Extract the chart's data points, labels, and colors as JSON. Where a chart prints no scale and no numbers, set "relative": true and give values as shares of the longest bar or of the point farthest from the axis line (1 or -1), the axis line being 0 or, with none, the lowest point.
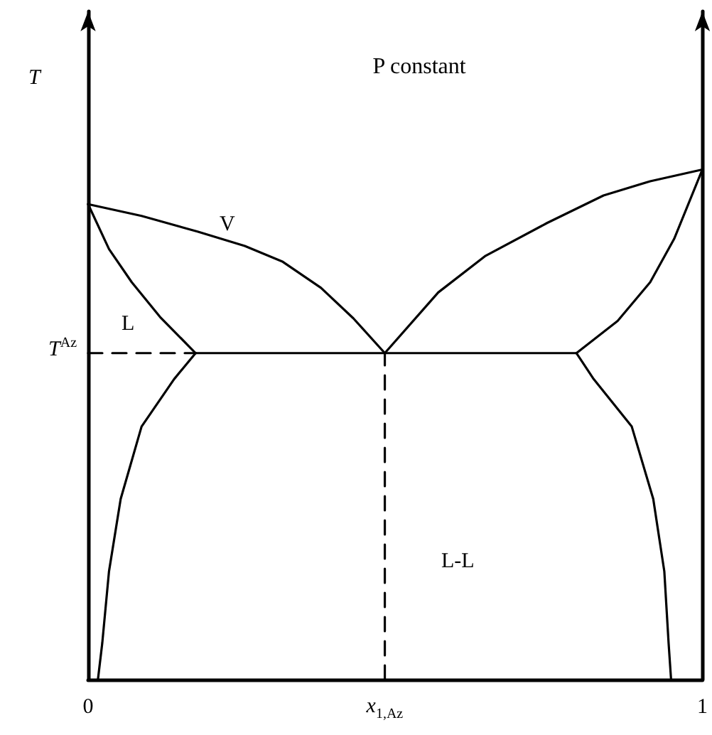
{
  "chart_data": {
    "type": "line",
    "title": "P constant",
    "ylabel": "T",
    "relative": true,
    "xlim": [
      0,
      1
    ],
    "xticks": [
      0,
      1
    ],
    "series": [
      {
        "color": "#000000",
        "x": [
          0,
          0.087,
          0.179,
          0.255,
          0.317,
          0.379,
          0.432,
          0.483
        ],
        "values": [
          0.932,
          0.909,
          0.878,
          0.85,
          0.819,
          0.768,
          0.708,
          0.64
        ]
      },
      {
        "color": "#000000",
        "x": [
          0,
          0.034,
          0.071,
          0.117,
          0.175
        ],
        "values": [
          0.932,
          0.844,
          0.779,
          0.711,
          0.64
        ]
      },
      {
        "color": "#000000",
        "x": [
          0.483,
          0.57,
          0.646,
          0.747,
          0.839,
          0.915,
          1
        ],
        "values": [
          0.64,
          0.759,
          0.83,
          0.895,
          0.949,
          0.977,
          1
        ]
      },
      {
        "color": "#000000",
        "x": [
          0.795,
          0.862,
          0.915,
          0.954,
          1
        ],
        "values": [
          0.64,
          0.703,
          0.779,
          0.864,
          1
        ]
      },
      {
        "color": "#000000",
        "x": [
          0.175,
          0.795
        ],
        "values": [
          0.64,
          0.64
        ]
      },
      {
        "color": "#000000",
        "x": [
          0.175,
          0.14,
          0.087,
          0.053,
          0.034,
          0.023,
          0.016
        ],
        "values": [
          0.64,
          0.589,
          0.496,
          0.354,
          0.212,
          0.071,
          0
        ]
      },
      {
        "color": "#000000",
        "x": [
          0.795,
          0.823,
          0.885,
          0.92,
          0.938,
          0.945,
          0.949
        ],
        "values": [
          0.64,
          0.589,
          0.496,
          0.354,
          0.212,
          0.071,
          0
        ]
      },
      {
        "color": "#000000",
        "line_style": "dashed",
        "x": [
          0,
          0.175
        ],
        "values": [
          0.64,
          0.64
        ]
      },
      {
        "color": "#000000",
        "line_style": "dashed",
        "x": [
          0.483,
          0.483
        ],
        "values": [
          0,
          0.64
        ]
      }
    ],
    "annotations": [
      {
        "text": "T$^{Az}$",
        "x": 0,
        "y": 0.64
      },
      {
        "text": "x$_{1,Az}$",
        "x": 0.483,
        "y": 0
      },
      "V",
      "L",
      "L-L"
    ],
    "marker": "none",
    "line_style": "solid",
    "grid": false
  }
}
